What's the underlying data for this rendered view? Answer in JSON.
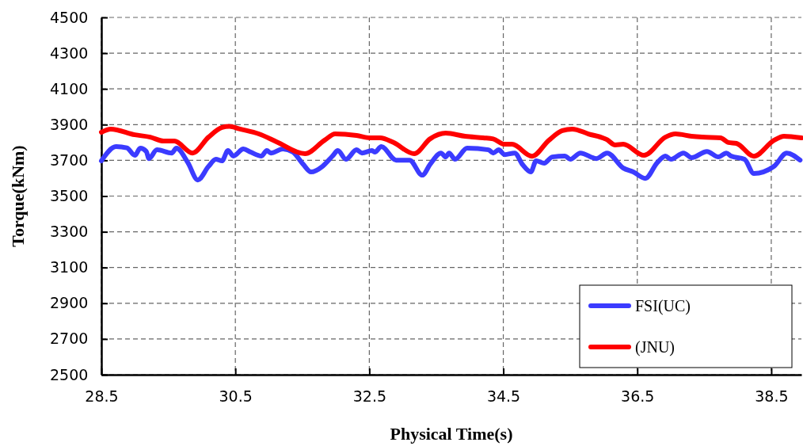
{
  "chart_data": {
    "type": "line",
    "xlabel": "Physical Time(s)",
    "ylabel": "Torque(kNm)",
    "xlim": [
      28.5,
      38.95
    ],
    "xticks": [
      28.5,
      30.5,
      32.5,
      34.5,
      36.5,
      38.5
    ],
    "ylim": [
      2500,
      4500
    ],
    "yticks": [
      2500,
      2700,
      2900,
      3100,
      3300,
      3500,
      3700,
      3900,
      4100,
      4300,
      4500
    ],
    "grid": true,
    "legend": "bottom right",
    "line_style": "solid",
    "marker": "none",
    "series": [
      {
        "name": "FSI(UC)",
        "color": "#3b3bff",
        "x": [
          28.5,
          28.72,
          28.88,
          29.0,
          29.08,
          29.17,
          29.21,
          29.33,
          29.55,
          29.62,
          29.79,
          29.94,
          30.1,
          30.21,
          30.3,
          30.39,
          30.47,
          30.62,
          30.73,
          30.89,
          30.97,
          31.03,
          31.21,
          31.36,
          31.51,
          31.63,
          31.8,
          31.95,
          32.03,
          32.15,
          32.31,
          32.39,
          32.54,
          32.58,
          32.68,
          32.9,
          33.1,
          33.29,
          33.41,
          33.57,
          33.64,
          33.69,
          33.78,
          33.96,
          34.28,
          34.35,
          34.43,
          34.52,
          34.67,
          34.79,
          34.91,
          34.99,
          35.11,
          35.23,
          35.42,
          35.5,
          35.65,
          35.89,
          36.05,
          36.29,
          36.44,
          36.62,
          36.8,
          36.92,
          37.0,
          37.19,
          37.31,
          37.54,
          37.71,
          37.83,
          37.9,
          38.1,
          38.24,
          38.54,
          38.73,
          38.93
        ],
        "values": [
          3697,
          3777,
          3770,
          3728,
          3768,
          3750,
          3710,
          3759,
          3741,
          3768,
          3688,
          3590,
          3666,
          3706,
          3697,
          3755,
          3724,
          3764,
          3746,
          3724,
          3755,
          3741,
          3764,
          3746,
          3679,
          3635,
          3666,
          3724,
          3755,
          3706,
          3759,
          3741,
          3755,
          3746,
          3777,
          3701,
          3701,
          3617,
          3679,
          3741,
          3719,
          3741,
          3706,
          3768,
          3759,
          3741,
          3759,
          3732,
          3741,
          3675,
          3635,
          3697,
          3684,
          3719,
          3724,
          3706,
          3741,
          3710,
          3741,
          3657,
          3635,
          3599,
          3688,
          3724,
          3706,
          3741,
          3715,
          3750,
          3719,
          3741,
          3724,
          3706,
          3626,
          3666,
          3741,
          3701
        ]
      },
      {
        "name": "(JNU)",
        "color": "#ff0000",
        "x": [
          28.5,
          28.64,
          29.0,
          29.23,
          29.43,
          29.59,
          29.86,
          30.1,
          30.3,
          30.41,
          30.57,
          30.85,
          31.12,
          31.54,
          31.83,
          31.99,
          32.31,
          32.51,
          32.66,
          32.86,
          33.17,
          33.41,
          33.64,
          33.93,
          34.2,
          34.35,
          34.52,
          34.63,
          34.93,
          35.18,
          35.38,
          35.53,
          35.77,
          36.05,
          36.17,
          36.29,
          36.6,
          36.92,
          37.07,
          37.31,
          37.47,
          37.74,
          37.86,
          37.98,
          38.24,
          38.54,
          38.69,
          38.95
        ],
        "values": [
          3857,
          3875,
          3843,
          3830,
          3808,
          3808,
          3741,
          3830,
          3884,
          3890,
          3875,
          3848,
          3803,
          3737,
          3812,
          3848,
          3839,
          3826,
          3826,
          3800,
          3737,
          3821,
          3852,
          3835,
          3826,
          3820,
          3790,
          3790,
          3723,
          3812,
          3866,
          3875,
          3848,
          3815,
          3786,
          3790,
          3728,
          3830,
          3848,
          3835,
          3830,
          3826,
          3800,
          3795,
          3723,
          3812,
          3835,
          3826
        ]
      }
    ]
  }
}
